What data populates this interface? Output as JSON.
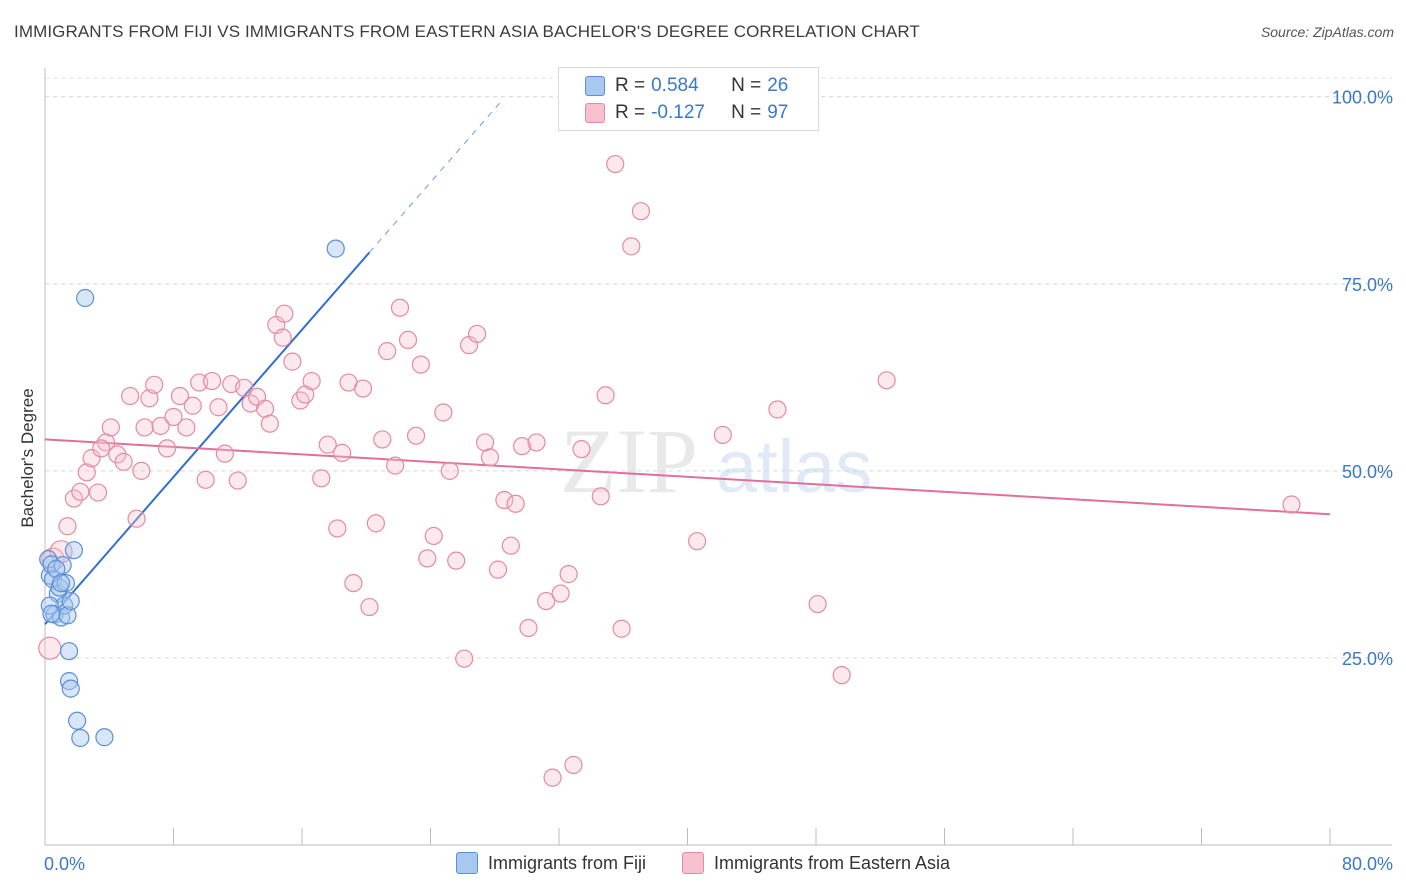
{
  "title": "IMMIGRANTS FROM FIJI VS IMMIGRANTS FROM EASTERN ASIA BACHELOR'S DEGREE CORRELATION CHART",
  "source": "Source: ZipAtlas.com",
  "watermark": {
    "zip": "ZIP",
    "atlas": "atlas"
  },
  "legend": {
    "r_label": "R =",
    "n_label": "N =",
    "items": [
      {
        "r": "0.584",
        "n": "26",
        "color": "#a8c8f0",
        "border": "#5b8fd6"
      },
      {
        "r": "-0.127",
        "n": "97",
        "color": "#f7c0cf",
        "border": "#e48aa4"
      }
    ]
  },
  "colors": {
    "fiji_fill": "rgba(168,200,240,0.45)",
    "fiji_stroke": "#5b8fd6",
    "fiji_line": "#2f6fd0",
    "asia_fill": "rgba(247,192,207,0.35)",
    "asia_stroke": "#e48aa4",
    "asia_line": "#e0709a",
    "tick_text": "#3a78c9"
  },
  "chart_data": {
    "type": "scatter",
    "title": "IMMIGRANTS FROM FIJI VS IMMIGRANTS FROM EASTERN ASIA BACHELOR'S DEGREE CORRELATION CHART",
    "xlabel": "",
    "ylabel": "Bachelor's Degree",
    "xlim": [
      0,
      80
    ],
    "ylim": [
      0,
      102.5
    ],
    "x_tick_labels": [
      "0.0%",
      "80.0%"
    ],
    "y_ticks": [
      25,
      50,
      75,
      100
    ],
    "y_tick_labels": [
      "25.0%",
      "50.0%",
      "75.0%",
      "100.0%"
    ],
    "grid": true,
    "legend_position": "top-center",
    "series": [
      {
        "name": "Immigrants from Fiji",
        "r": 0.584,
        "n": 26,
        "trend": {
          "x0": 0,
          "y0": 29.5,
          "x1": 20.2,
          "y1": 79.2,
          "dash_to_x": 28.5
        },
        "points": [
          [
            0.2,
            38.2
          ],
          [
            0.3,
            36.0
          ],
          [
            0.4,
            37.5
          ],
          [
            0.5,
            35.5
          ],
          [
            0.6,
            30.8
          ],
          [
            0.8,
            33.6
          ],
          [
            0.9,
            34.4
          ],
          [
            1.0,
            30.4
          ],
          [
            1.1,
            37.4
          ],
          [
            1.2,
            32.0
          ],
          [
            1.3,
            35.0
          ],
          [
            1.4,
            30.7
          ],
          [
            1.5,
            25.9
          ],
          [
            1.6,
            32.6
          ],
          [
            1.8,
            39.4
          ],
          [
            1.5,
            21.9
          ],
          [
            1.6,
            20.9
          ],
          [
            2.0,
            16.6
          ],
          [
            2.2,
            14.3
          ],
          [
            3.7,
            14.4
          ],
          [
            2.5,
            73.1
          ],
          [
            18.1,
            79.7
          ],
          [
            0.3,
            32.0
          ],
          [
            0.7,
            36.9
          ],
          [
            1.0,
            35.0
          ],
          [
            0.4,
            30.9
          ]
        ]
      },
      {
        "name": "Immigrants from Eastern Asia",
        "r": -0.127,
        "n": 97,
        "trend": {
          "x0": 0,
          "y0": 54.2,
          "x1": 80,
          "y1": 44.2
        },
        "points": [
          [
            0.3,
            26.3
          ],
          [
            0.5,
            38.2
          ],
          [
            1.0,
            39.2
          ],
          [
            1.4,
            42.6
          ],
          [
            1.8,
            46.3
          ],
          [
            2.2,
            47.2
          ],
          [
            2.6,
            49.8
          ],
          [
            2.9,
            51.7
          ],
          [
            3.3,
            47.1
          ],
          [
            3.8,
            53.8
          ],
          [
            4.1,
            55.8
          ],
          [
            4.5,
            52.2
          ],
          [
            4.9,
            51.2
          ],
          [
            5.3,
            60.0
          ],
          [
            5.7,
            43.6
          ],
          [
            6.2,
            55.8
          ],
          [
            6.5,
            59.7
          ],
          [
            6.8,
            61.5
          ],
          [
            7.2,
            56.0
          ],
          [
            7.6,
            53.0
          ],
          [
            8.0,
            57.2
          ],
          [
            8.4,
            60.0
          ],
          [
            8.8,
            55.8
          ],
          [
            9.2,
            58.7
          ],
          [
            9.6,
            61.8
          ],
          [
            10.0,
            48.8
          ],
          [
            10.4,
            62.0
          ],
          [
            10.8,
            58.5
          ],
          [
            11.2,
            52.3
          ],
          [
            11.6,
            61.6
          ],
          [
            12.0,
            48.7
          ],
          [
            12.4,
            61.1
          ],
          [
            12.8,
            59.0
          ],
          [
            13.2,
            59.9
          ],
          [
            13.7,
            58.3
          ],
          [
            14.0,
            56.3
          ],
          [
            14.4,
            69.5
          ],
          [
            14.9,
            71.0
          ],
          [
            15.4,
            64.6
          ],
          [
            15.9,
            59.4
          ],
          [
            16.2,
            60.2
          ],
          [
            16.6,
            62.0
          ],
          [
            14.8,
            67.8
          ],
          [
            17.2,
            49.0
          ],
          [
            17.6,
            53.5
          ],
          [
            18.2,
            42.3
          ],
          [
            18.5,
            52.4
          ],
          [
            18.9,
            61.8
          ],
          [
            19.2,
            35.0
          ],
          [
            19.8,
            61.0
          ],
          [
            20.2,
            31.8
          ],
          [
            20.6,
            43.0
          ],
          [
            21.0,
            54.2
          ],
          [
            21.3,
            66.0
          ],
          [
            21.8,
            50.7
          ],
          [
            22.1,
            71.8
          ],
          [
            22.6,
            67.5
          ],
          [
            23.1,
            54.7
          ],
          [
            23.4,
            64.2
          ],
          [
            23.8,
            38.3
          ],
          [
            24.2,
            41.3
          ],
          [
            24.8,
            57.8
          ],
          [
            25.2,
            50.0
          ],
          [
            25.6,
            38.0
          ],
          [
            26.1,
            24.9
          ],
          [
            26.4,
            66.8
          ],
          [
            26.9,
            68.3
          ],
          [
            27.4,
            53.8
          ],
          [
            27.7,
            51.8
          ],
          [
            28.2,
            36.8
          ],
          [
            28.6,
            46.1
          ],
          [
            29.0,
            40.0
          ],
          [
            29.3,
            45.6
          ],
          [
            29.7,
            53.3
          ],
          [
            30.1,
            29.0
          ],
          [
            30.6,
            53.8
          ],
          [
            31.2,
            32.6
          ],
          [
            31.6,
            9.0
          ],
          [
            32.1,
            33.6
          ],
          [
            32.6,
            36.2
          ],
          [
            32.9,
            10.7
          ],
          [
            33.4,
            52.9
          ],
          [
            34.6,
            46.6
          ],
          [
            34.9,
            60.1
          ],
          [
            35.5,
            91.0
          ],
          [
            35.9,
            28.9
          ],
          [
            36.5,
            80.0
          ],
          [
            37.1,
            84.7
          ],
          [
            40.6,
            40.6
          ],
          [
            42.2,
            54.8
          ],
          [
            45.6,
            58.2
          ],
          [
            48.1,
            32.2
          ],
          [
            49.6,
            22.7
          ],
          [
            52.4,
            62.1
          ],
          [
            77.6,
            45.5
          ],
          [
            3.5,
            53.0
          ],
          [
            6.0,
            50.0
          ]
        ]
      }
    ]
  }
}
